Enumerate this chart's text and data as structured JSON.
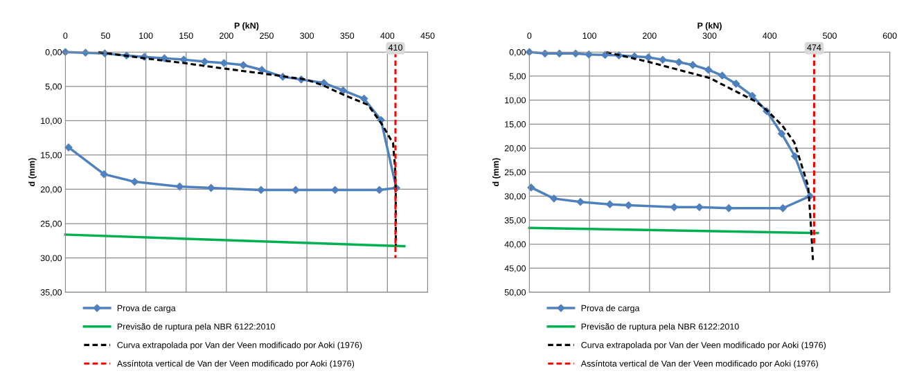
{
  "chart_data": [
    {
      "type": "line",
      "xlabel": "P (kN)",
      "ylabel": "d (mm)",
      "xlim": [
        0,
        450
      ],
      "xticks": [
        0,
        50,
        100,
        150,
        200,
        250,
        300,
        350,
        400,
        450
      ],
      "ylim": [
        35,
        0
      ],
      "yticks": [
        {
          "value": 0,
          "label": "0,00"
        },
        {
          "value": 5,
          "label": "5,00"
        },
        {
          "value": 10,
          "label": "10,00"
        },
        {
          "value": 15,
          "label": "15,00"
        },
        {
          "value": 20,
          "label": "20,00"
        },
        {
          "value": 25,
          "label": "25,00"
        },
        {
          "value": 30,
          "label": "30,00"
        },
        {
          "value": 35,
          "label": "35,00"
        }
      ],
      "grid": true,
      "legend": "bottom",
      "annotations": [
        {
          "text": "410",
          "x": 410,
          "y": 0
        }
      ],
      "series": [
        {
          "name": "Prova de carga",
          "color": "#4f81bd",
          "marker": "diamond",
          "line_style": "solid",
          "x": [
            0,
            25,
            49,
            76,
            98,
            123,
            147,
            173,
            197,
            221,
            244,
            270,
            293,
            321,
            345,
            371,
            392,
            411,
            390,
            335,
            286,
            243,
            181,
            142,
            86,
            48,
            4
          ],
          "values": [
            0,
            0.1,
            0.2,
            0.5,
            0.7,
            0.9,
            1.1,
            1.4,
            1.6,
            1.9,
            2.6,
            3.6,
            4.0,
            4.5,
            5.6,
            6.8,
            9.9,
            19.8,
            20.1,
            20.1,
            20.1,
            20.1,
            19.8,
            19.6,
            18.9,
            17.8,
            13.9
          ]
        },
        {
          "name": "Previsão de ruptura pela NBR 6122:2010",
          "color": "#00b050",
          "marker": "none",
          "line_style": "solid",
          "x": [
            0,
            421
          ],
          "values": [
            26.6,
            28.3
          ]
        },
        {
          "name": "Curva extrapolada por Van der Veen modificado por Aoki (1976)",
          "color": "#000000",
          "marker": "none",
          "line_style": "dashed",
          "x": [
            41,
            98,
            147,
            197,
            250,
            299,
            321,
            345,
            376,
            393,
            404,
            407,
            409.5,
            410.3,
            410.5
          ],
          "values": [
            0,
            0.9,
            1.6,
            2.4,
            3.2,
            4.0,
            4.9,
            6.2,
            7.7,
            10.5,
            12.7,
            13.2,
            16.8,
            20.3,
            28.2
          ]
        },
        {
          "name": "Assíntota vertical de Van der Veen modificado por Aoki (1976)",
          "color": "#ff0000",
          "marker": "none",
          "line_style": "dashed",
          "x": [
            410,
            410
          ],
          "values": [
            0,
            30
          ]
        }
      ]
    },
    {
      "type": "line",
      "xlabel": "P (kN)",
      "ylabel": "d (mm)",
      "xlim": [
        0,
        600
      ],
      "xticks": [
        0,
        100,
        200,
        300,
        400,
        500,
        600
      ],
      "ylim": [
        50,
        0
      ],
      "yticks": [
        {
          "value": 0,
          "label": "0,00"
        },
        {
          "value": 5,
          "label": "5,00"
        },
        {
          "value": 10,
          "label": "10,00"
        },
        {
          "value": 15,
          "label": "15,00"
        },
        {
          "value": 20,
          "label": "20,00"
        },
        {
          "value": 25,
          "label": "25,00"
        },
        {
          "value": 30,
          "label": "30,00"
        },
        {
          "value": 35,
          "label": "35,00"
        },
        {
          "value": 40,
          "label": "40,00"
        },
        {
          "value": 45,
          "label": "45,00"
        },
        {
          "value": 50,
          "label": "50,00"
        }
      ],
      "grid": true,
      "legend": "bottom",
      "annotations": [
        {
          "text": "474",
          "x": 474,
          "y": 0
        }
      ],
      "series": [
        {
          "name": "Prova de carga",
          "color": "#4f81bd",
          "marker": "diamond",
          "line_style": "solid",
          "x": [
            0,
            26,
            50,
            77,
            99,
            126,
            149,
            175,
            198,
            222,
            249,
            272,
            298,
            321,
            344,
            371,
            395,
            420,
            442,
            467,
            422,
            332,
            283,
            241,
            165,
            134,
            85,
            41,
            3
          ],
          "values": [
            0,
            0.3,
            0.3,
            0.3,
            0.5,
            0.6,
            0.7,
            0.9,
            1.1,
            1.6,
            2.1,
            2.7,
            3.7,
            4.9,
            6.6,
            9.1,
            12.3,
            17.0,
            21.7,
            30.0,
            32.5,
            32.5,
            32.3,
            32.3,
            31.9,
            31.7,
            31.2,
            30.5,
            28.2
          ]
        },
        {
          "name": "Previsão de ruptura pela NBR 6122:2010",
          "color": "#00b050",
          "marker": "none",
          "line_style": "solid",
          "x": [
            0,
            480
          ],
          "values": [
            36.6,
            37.7
          ]
        },
        {
          "name": "Curva extrapolada por Van der Veen modificado por Aoki (1976)",
          "color": "#000000",
          "marker": "none",
          "line_style": "dashed",
          "x": [
            128,
            200,
            300,
            377,
            395,
            421,
            441,
            448,
            464,
            468,
            472
          ],
          "values": [
            0,
            2.1,
            5.4,
            10.3,
            12.1,
            15.3,
            18.8,
            21.5,
            27.9,
            34.8,
            43.3
          ]
        },
        {
          "name": "Assíntota vertical de Van der Veen modificado por Aoki (1976)",
          "color": "#ff0000",
          "marker": "none",
          "line_style": "dashed",
          "x": [
            474,
            474
          ],
          "values": [
            0,
            39.8
          ]
        }
      ]
    }
  ]
}
